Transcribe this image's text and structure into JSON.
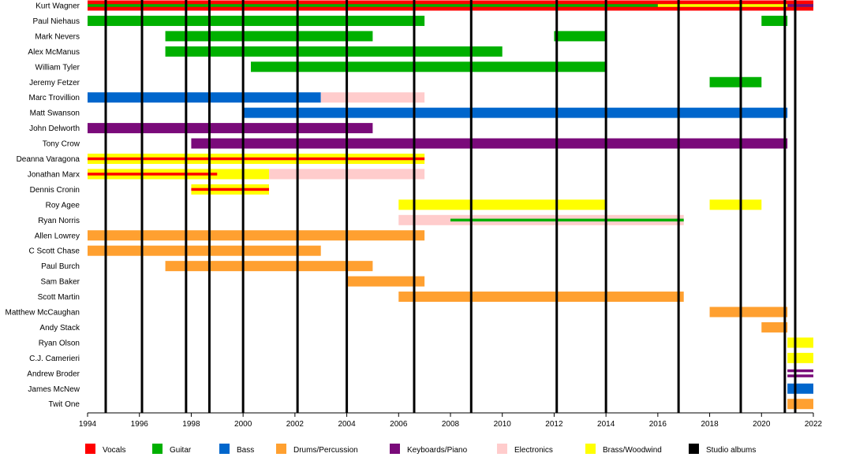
{
  "chart_data": {
    "type": "timeline",
    "x_range": [
      1994,
      2022
    ],
    "x_ticks": [
      "1994",
      "1996",
      "1998",
      "2000",
      "2002",
      "2004",
      "2006",
      "2008",
      "2010",
      "2012",
      "2014",
      "2016",
      "2018",
      "2020",
      "2022"
    ],
    "colors": {
      "Vocals": "#ff0000",
      "Guitar": "#00b000",
      "Bass": "#0066cc",
      "Drums/Percussion": "#ffa030",
      "Keyboards/Piano": "#7a0a7a",
      "Electronics": "#ffcccc",
      "Brass/Woodwind": "#ffff00",
      "Studio albums": "#000000"
    },
    "legend": [
      "Vocals",
      "Guitar",
      "Bass",
      "Drums/Percussion",
      "Keyboards/Piano",
      "Electronics",
      "Brass/Woodwind",
      "Studio albums"
    ],
    "studio_albums": [
      1994.7,
      1996.1,
      1997.8,
      1998.7,
      2000.0,
      2002.1,
      2004.0,
      2006.6,
      2008.8,
      2012.1,
      2014.0,
      2016.8,
      2019.2,
      2020.9,
      2021.3
    ],
    "members": [
      {
        "name": "Kurt Wagner",
        "bars": [
          {
            "role": "Vocals",
            "start": 1994,
            "end": 2022
          },
          {
            "role": "Guitar",
            "start": 1994,
            "end": 2022,
            "layer": "inner"
          },
          {
            "role": "Brass/Woodwind",
            "start": 2016,
            "end": 2021,
            "layer": "inner"
          },
          {
            "role": "Keyboards/Piano",
            "start": 2021,
            "end": 2022,
            "layer": "inner"
          }
        ]
      },
      {
        "name": "Paul Niehaus",
        "bars": [
          {
            "role": "Guitar",
            "start": 1994,
            "end": 2007
          },
          {
            "role": "Guitar",
            "start": 2020,
            "end": 2021
          }
        ]
      },
      {
        "name": "Mark Nevers",
        "bars": [
          {
            "role": "Guitar",
            "start": 1997,
            "end": 2005
          },
          {
            "role": "Guitar",
            "start": 2012,
            "end": 2014
          }
        ]
      },
      {
        "name": "Alex McManus",
        "bars": [
          {
            "role": "Guitar",
            "start": 1997,
            "end": 2010
          }
        ]
      },
      {
        "name": "William Tyler",
        "bars": [
          {
            "role": "Guitar",
            "start": 2000.3,
            "end": 2014
          }
        ]
      },
      {
        "name": "Jeremy Fetzer",
        "bars": [
          {
            "role": "Guitar",
            "start": 2018,
            "end": 2020
          }
        ]
      },
      {
        "name": "Marc Trovillion",
        "bars": [
          {
            "role": "Bass",
            "start": 1994,
            "end": 2003
          },
          {
            "role": "Electronics",
            "start": 2003,
            "end": 2007
          }
        ]
      },
      {
        "name": "Matt Swanson",
        "bars": [
          {
            "role": "Bass",
            "start": 2000,
            "end": 2021
          }
        ]
      },
      {
        "name": "John Delworth",
        "bars": [
          {
            "role": "Keyboards/Piano",
            "start": 1994,
            "end": 2005
          }
        ]
      },
      {
        "name": "Tony Crow",
        "bars": [
          {
            "role": "Keyboards/Piano",
            "start": 1998,
            "end": 2021
          }
        ]
      },
      {
        "name": "Deanna Varagona",
        "bars": [
          {
            "role": "Brass/Woodwind",
            "start": 1994,
            "end": 2007
          },
          {
            "role": "Vocals",
            "start": 1994,
            "end": 2007,
            "layer": "inner"
          }
        ]
      },
      {
        "name": "Jonathan Marx",
        "bars": [
          {
            "role": "Brass/Woodwind",
            "start": 1994,
            "end": 2001
          },
          {
            "role": "Electronics",
            "start": 2001,
            "end": 2007
          },
          {
            "role": "Vocals",
            "start": 1994,
            "end": 1999,
            "layer": "inner"
          }
        ]
      },
      {
        "name": "Dennis Cronin",
        "bars": [
          {
            "role": "Brass/Woodwind",
            "start": 1998,
            "end": 2001
          },
          {
            "role": "Vocals",
            "start": 1998,
            "end": 2001,
            "layer": "inner"
          }
        ]
      },
      {
        "name": "Roy Agee",
        "bars": [
          {
            "role": "Brass/Woodwind",
            "start": 2006,
            "end": 2014
          },
          {
            "role": "Brass/Woodwind",
            "start": 2018,
            "end": 2020
          }
        ]
      },
      {
        "name": "Ryan Norris",
        "bars": [
          {
            "role": "Electronics",
            "start": 2006,
            "end": 2017
          },
          {
            "role": "Guitar",
            "start": 2008,
            "end": 2017,
            "layer": "inner"
          }
        ]
      },
      {
        "name": "Allen Lowrey",
        "bars": [
          {
            "role": "Drums/Percussion",
            "start": 1994,
            "end": 2007
          }
        ]
      },
      {
        "name": "C Scott Chase",
        "bars": [
          {
            "role": "Drums/Percussion",
            "start": 1994,
            "end": 2003
          }
        ]
      },
      {
        "name": "Paul Burch",
        "bars": [
          {
            "role": "Drums/Percussion",
            "start": 1997,
            "end": 2005
          }
        ]
      },
      {
        "name": "Sam Baker",
        "bars": [
          {
            "role": "Drums/Percussion",
            "start": 2004,
            "end": 2007
          }
        ]
      },
      {
        "name": "Scott Martin",
        "bars": [
          {
            "role": "Drums/Percussion",
            "start": 2006,
            "end": 2017
          }
        ]
      },
      {
        "name": "Matthew McCaughan",
        "bars": [
          {
            "role": "Drums/Percussion",
            "start": 2018,
            "end": 2021
          }
        ]
      },
      {
        "name": "Andy Stack",
        "bars": [
          {
            "role": "Drums/Percussion",
            "start": 2020,
            "end": 2021
          }
        ]
      },
      {
        "name": "Ryan Olson",
        "bars": [
          {
            "role": "Brass/Woodwind",
            "start": 2021,
            "end": 2022
          }
        ]
      },
      {
        "name": "C.J. Camerieri",
        "bars": [
          {
            "role": "Brass/Woodwind",
            "start": 2021,
            "end": 2022
          }
        ]
      },
      {
        "name": "Andrew Broder",
        "bars": [
          {
            "role": "Keyboards/Piano",
            "start": 2021,
            "end": 2022,
            "layer": "double"
          }
        ]
      },
      {
        "name": "James McNew",
        "bars": [
          {
            "role": "Bass",
            "start": 2021,
            "end": 2022
          }
        ]
      },
      {
        "name": "Twit One",
        "bars": [
          {
            "role": "Drums/Percussion",
            "start": 2021,
            "end": 2022
          }
        ]
      }
    ]
  }
}
